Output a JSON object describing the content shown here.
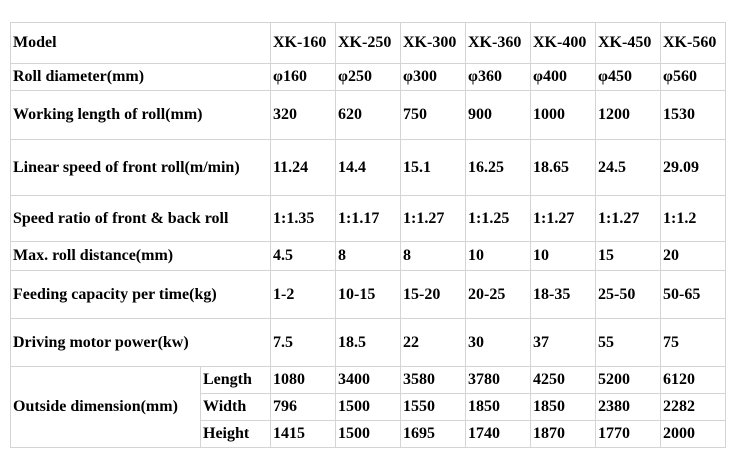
{
  "table": {
    "model_label": "Model",
    "models": [
      "XK-160",
      "XK-250",
      "XK-300",
      "XK-360",
      "XK-400",
      "XK-450",
      "XK-560"
    ],
    "rows": [
      {
        "label": "Roll diameter(mm)",
        "values": [
          "φ160",
          "φ250",
          "φ300",
          "φ360",
          "φ400",
          "φ450",
          "φ560"
        ]
      },
      {
        "label": "Working length of roll(mm)",
        "values": [
          "320",
          "620",
          "750",
          "900",
          "1000",
          "1200",
          "1530"
        ]
      },
      {
        "label": "Linear speed of front roll(m/min)",
        "values": [
          "11.24",
          "14.4",
          "15.1",
          "16.25",
          "18.65",
          "24.5",
          "29.09"
        ]
      },
      {
        "label": "Speed ratio of front & back roll",
        "values": [
          "1:1.35",
          "1:1.17",
          "1:1.27",
          "1:1.25",
          "1:1.27",
          "1:1.27",
          "1:1.2"
        ]
      },
      {
        "label": "Max. roll distance(mm)",
        "values": [
          "4.5",
          "8",
          "8",
          "10",
          "10",
          "15",
          "20"
        ]
      },
      {
        "label": "Feeding capacity per time(kg)",
        "values": [
          "1-2",
          "10-15",
          "15-20",
          "20-25",
          "18-35",
          "25-50",
          "50-65"
        ]
      },
      {
        "label": "Driving motor power(kw)",
        "values": [
          "7.5",
          "18.5",
          "22",
          "30",
          "37",
          "55",
          "75"
        ]
      }
    ],
    "outside_dimension": {
      "label": "Outside dimension(mm)",
      "rows": [
        {
          "label": "Length",
          "values": [
            "1080",
            "3400",
            "3580",
            "3780",
            "4250",
            "5200",
            "6120"
          ]
        },
        {
          "label": "Width",
          "values": [
            "796",
            "1500",
            "1550",
            "1850",
            "1850",
            "2380",
            "2282"
          ]
        },
        {
          "label": "Height",
          "values": [
            "1415",
            "1500",
            "1695",
            "1740",
            "1870",
            "1770",
            "2000"
          ]
        }
      ]
    }
  }
}
